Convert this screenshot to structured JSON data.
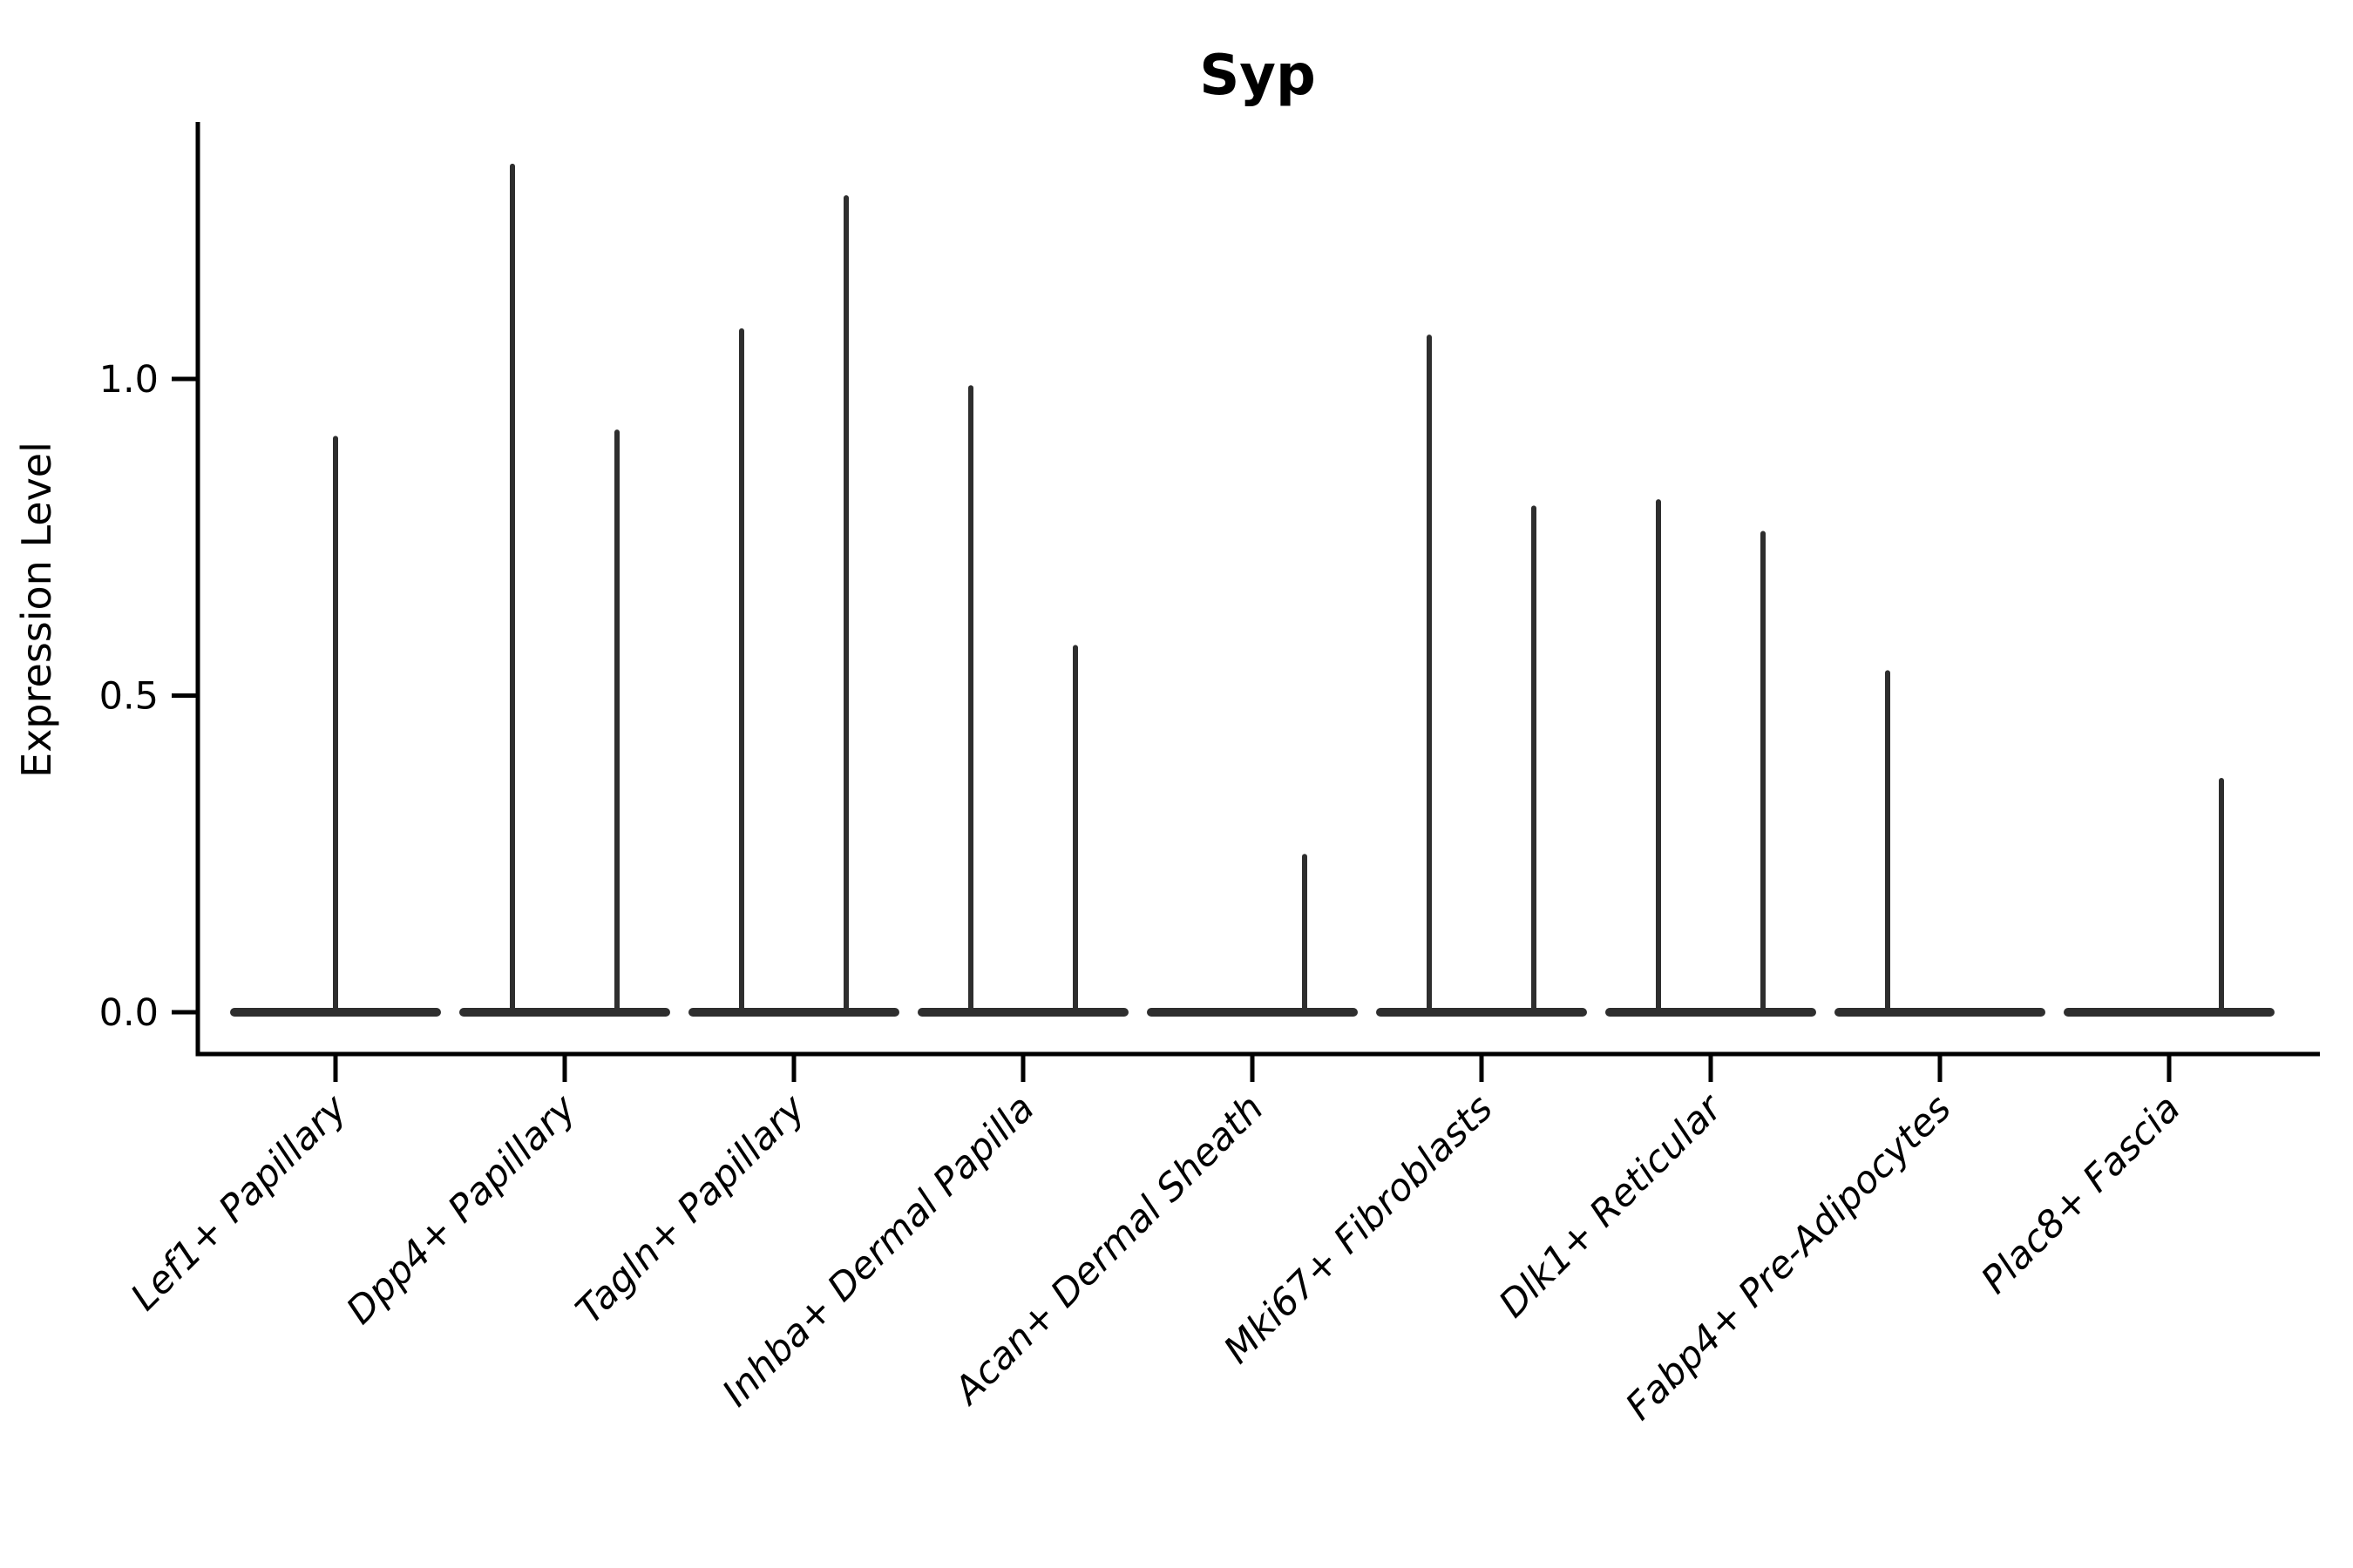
{
  "title": "Syp",
  "ylabel": "Expression Level",
  "chart_data": {
    "type": "violin",
    "title": "Syp",
    "xlabel": "",
    "ylabel": "Expression Level",
    "grid": false,
    "legend": "none",
    "ylim": [
      -0.07,
      1.41
    ],
    "ytick_labels": [
      "0.0",
      "0.5",
      "1.0"
    ],
    "ytick_values": [
      0.0,
      0.5,
      1.0
    ],
    "categories": [
      "Lef1+ Papillary",
      "Dpp4+ Papillary",
      "Tagln+ Papillary",
      "Inhba+ Dermal Papilla",
      "Acan+ Dermal Sheath",
      "Mki67+ Fibroblasts",
      "Dlk1+ Reticular",
      "Fabp4+ Pre-Adipocytes",
      "Plac8+ Fascia"
    ],
    "series": [
      {
        "category": "Lef1+ Papillary",
        "violins": [
          {
            "position": "center",
            "max_expression": 0.91
          }
        ]
      },
      {
        "category": "Dpp4+ Papillary",
        "violins": [
          {
            "position": "left",
            "max_expression": 1.34
          },
          {
            "position": "right",
            "max_expression": 0.92
          }
        ]
      },
      {
        "category": "Tagln+ Papillary",
        "violins": [
          {
            "position": "left",
            "max_expression": 1.08
          },
          {
            "position": "right",
            "max_expression": 1.29
          }
        ]
      },
      {
        "category": "Inhba+ Dermal Papilla",
        "violins": [
          {
            "position": "left",
            "max_expression": 0.99
          },
          {
            "position": "right",
            "max_expression": 0.58
          }
        ]
      },
      {
        "category": "Acan+ Dermal Sheath",
        "violins": [
          {
            "position": "right",
            "max_expression": 0.25
          }
        ]
      },
      {
        "category": "Mki67+ Fibroblasts",
        "violins": [
          {
            "position": "left",
            "max_expression": 1.07
          },
          {
            "position": "right",
            "max_expression": 0.8
          }
        ]
      },
      {
        "category": "Dlk1+ Reticular",
        "violins": [
          {
            "position": "left",
            "max_expression": 0.81
          },
          {
            "position": "right",
            "max_expression": 0.76
          }
        ]
      },
      {
        "category": "Fabp4+ Pre-Adipocytes",
        "violins": [
          {
            "position": "left",
            "max_expression": 0.54
          }
        ]
      },
      {
        "category": "Plac8+ Fascia",
        "violins": [
          {
            "position": "right",
            "max_expression": 0.37
          }
        ]
      }
    ],
    "colors": {
      "violin": "#2e2e2e",
      "axis": "#000000",
      "background": "#ffffff"
    }
  }
}
